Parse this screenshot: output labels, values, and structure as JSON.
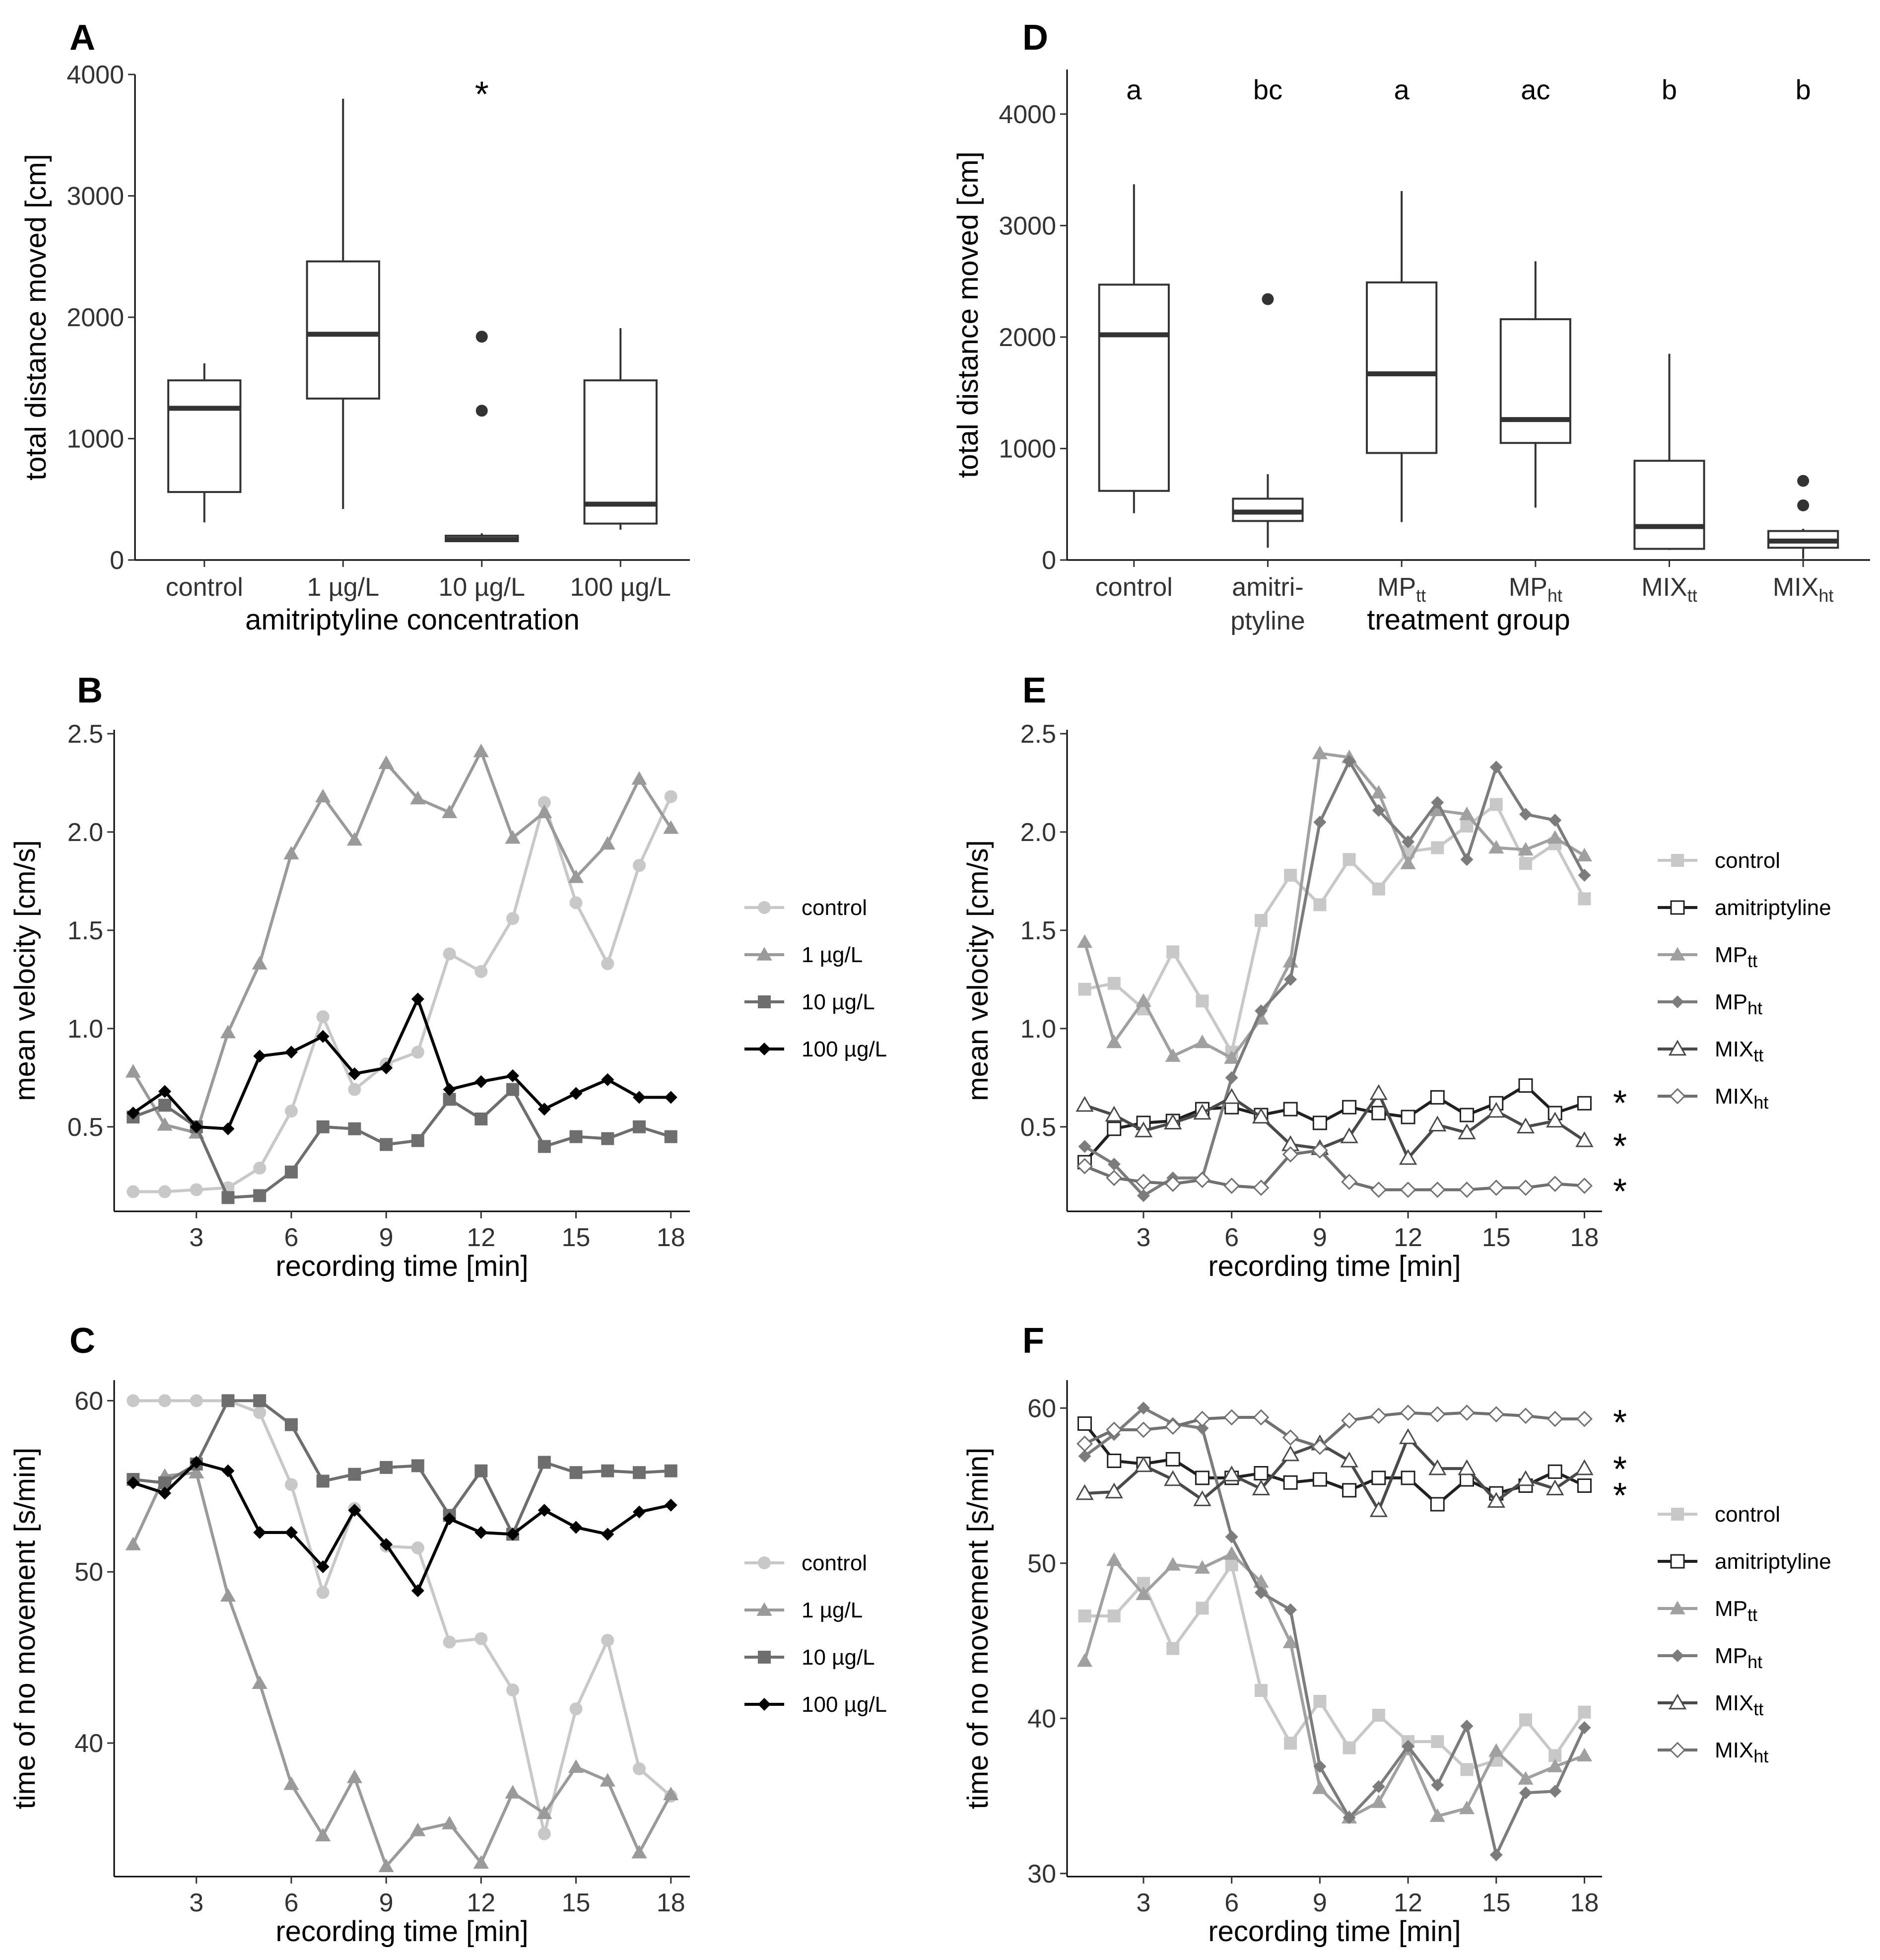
{
  "chart_data": [
    {
      "panel": "A",
      "type": "box",
      "ylabel": "total distance moved [cm]",
      "xlabel": "amitriptyline concentration",
      "ylim": [
        0,
        4000
      ],
      "yticks": [
        "0",
        "1000",
        "2000",
        "3000",
        "4000"
      ],
      "categories": [
        "control",
        "1 µg/L",
        "10 µg/L",
        "100 µg/L"
      ],
      "boxes": [
        {
          "min": 310,
          "q1": 560,
          "median": 1250,
          "q3": 1480,
          "max": 1620,
          "outliers": []
        },
        {
          "min": 420,
          "q1": 1330,
          "median": 1860,
          "q3": 2460,
          "max": 3800,
          "outliers": []
        },
        {
          "min": 150,
          "q1": 155,
          "median": 170,
          "q3": 200,
          "max": 220,
          "outliers": [
            1230,
            1840
          ]
        },
        {
          "min": 250,
          "q1": 300,
          "median": 460,
          "q3": 1480,
          "max": 1910,
          "outliers": []
        }
      ],
      "annotations": [
        {
          "category": "10 µg/L",
          "text": "*",
          "y": 3900
        }
      ]
    },
    {
      "panel": "D",
      "type": "box",
      "ylabel": "total distance moved [cm]",
      "xlabel": "treatment group",
      "ylim": [
        0,
        4400
      ],
      "yticks": [
        "0",
        "1000",
        "2000",
        "3000",
        "4000"
      ],
      "categories": [
        {
          "main": "control",
          "sub": ""
        },
        {
          "main": "amitri-",
          "sub": "",
          "line2": "ptyline"
        },
        {
          "main": "MP",
          "sub": "tt"
        },
        {
          "main": "MP",
          "sub": "ht"
        },
        {
          "main": "MIX",
          "sub": "tt"
        },
        {
          "main": "MIX",
          "sub": "ht"
        }
      ],
      "letters": [
        "a",
        "bc",
        "a",
        "ac",
        "b",
        "b"
      ],
      "boxes": [
        {
          "min": 420,
          "q1": 620,
          "median": 2020,
          "q3": 2470,
          "max": 3370,
          "outliers": []
        },
        {
          "min": 110,
          "q1": 350,
          "median": 430,
          "q3": 550,
          "max": 770,
          "outliers": [
            2340
          ]
        },
        {
          "min": 340,
          "q1": 960,
          "median": 1670,
          "q3": 2490,
          "max": 3310,
          "outliers": []
        },
        {
          "min": 470,
          "q1": 1050,
          "median": 1260,
          "q3": 2160,
          "max": 2680,
          "outliers": []
        },
        {
          "min": 90,
          "q1": 100,
          "median": 300,
          "q3": 890,
          "max": 1850,
          "outliers": []
        },
        {
          "min": 10,
          "q1": 110,
          "median": 170,
          "q3": 260,
          "max": 280,
          "outliers": [
            490,
            710
          ]
        }
      ]
    },
    {
      "panel": "B",
      "type": "line",
      "ylabel": "mean velocity [cm/s]",
      "xlabel": "recording time [min]",
      "xlim": [
        0.4,
        18.6
      ],
      "ylim": [
        0.07,
        2.52
      ],
      "xticks": [
        3,
        6,
        9,
        12,
        15,
        18
      ],
      "yticks": [
        0.5,
        1.0,
        1.5,
        2.0,
        2.5
      ],
      "ytick_labels": [
        "0.5",
        "1.0",
        "1.5",
        "2.0",
        "2.5"
      ],
      "x": [
        1,
        2,
        3,
        4,
        5,
        6,
        7,
        8,
        9,
        10,
        11,
        12,
        13,
        14,
        15,
        16,
        17,
        18
      ],
      "series": [
        {
          "name": "control",
          "color": "#c8c8c8",
          "marker": "circle",
          "values": [
            0.17,
            0.17,
            0.18,
            0.19,
            0.29,
            0.58,
            1.06,
            0.69,
            0.82,
            0.88,
            1.38,
            1.29,
            1.56,
            2.15,
            1.64,
            1.33,
            1.83,
            2.18
          ]
        },
        {
          "name": "1 µg/L",
          "color": "#9a9a9a",
          "marker": "triangle",
          "values": [
            0.78,
            0.51,
            0.47,
            0.98,
            1.33,
            1.89,
            2.18,
            1.96,
            2.35,
            2.17,
            2.1,
            2.41,
            1.97,
            2.1,
            1.77,
            1.94,
            2.27,
            2.02
          ]
        },
        {
          "name": "10 µg/L",
          "color": "#6e6e6e",
          "marker": "square",
          "values": [
            0.55,
            0.61,
            0.5,
            0.14,
            0.15,
            0.27,
            0.5,
            0.49,
            0.41,
            0.43,
            0.64,
            0.54,
            0.69,
            0.4,
            0.45,
            0.44,
            0.5,
            0.45
          ]
        },
        {
          "name": "100 µg/L",
          "color": "#000000",
          "marker": "diamond",
          "values": [
            0.57,
            0.68,
            0.5,
            0.49,
            0.86,
            0.88,
            0.96,
            0.77,
            0.8,
            1.15,
            0.69,
            0.73,
            0.76,
            0.59,
            0.67,
            0.74,
            0.65,
            0.65
          ]
        }
      ],
      "stars": []
    },
    {
      "panel": "E",
      "type": "line",
      "ylabel": "mean velocity [cm/s]",
      "xlabel": "recording time [min]",
      "xlim": [
        0.4,
        18.6
      ],
      "ylim": [
        0.07,
        2.52
      ],
      "xticks": [
        3,
        6,
        9,
        12,
        15,
        18
      ],
      "yticks": [
        0.5,
        1.0,
        1.5,
        2.0,
        2.5
      ],
      "ytick_labels": [
        "0.5",
        "1.0",
        "1.5",
        "2.0",
        "2.5"
      ],
      "x": [
        1,
        2,
        3,
        4,
        5,
        6,
        7,
        8,
        9,
        10,
        11,
        12,
        13,
        14,
        15,
        16,
        17,
        18
      ],
      "series": [
        {
          "name": "control",
          "sub": "",
          "color": "#c8c8c8",
          "marker": "square",
          "values": [
            1.2,
            1.23,
            1.1,
            1.39,
            1.14,
            0.88,
            1.55,
            1.78,
            1.63,
            1.86,
            1.71,
            1.9,
            1.92,
            2.03,
            2.14,
            1.84,
            1.94,
            1.66
          ]
        },
        {
          "name": "amitriptyline",
          "sub": "",
          "color": "#202020",
          "marker": "open-square",
          "values": [
            0.32,
            0.49,
            0.52,
            0.53,
            0.59,
            0.6,
            0.56,
            0.59,
            0.52,
            0.6,
            0.57,
            0.55,
            0.65,
            0.56,
            0.62,
            0.71,
            0.57,
            0.62
          ]
        },
        {
          "name": "MP",
          "sub": "tt",
          "color": "#a0a0a0",
          "marker": "triangle",
          "values": [
            1.44,
            0.93,
            1.14,
            0.86,
            0.93,
            0.85,
            1.05,
            1.34,
            2.4,
            2.38,
            2.2,
            1.84,
            2.11,
            2.09,
            1.92,
            1.91,
            1.97,
            1.88
          ]
        },
        {
          "name": "MP",
          "sub": "ht",
          "color": "#7c7c7c",
          "marker": "diamond",
          "values": [
            0.4,
            0.31,
            0.15,
            0.24,
            0.24,
            0.75,
            1.09,
            1.25,
            2.05,
            2.36,
            2.11,
            1.95,
            2.15,
            1.86,
            2.33,
            2.09,
            2.06,
            1.78
          ]
        },
        {
          "name": "MIX",
          "sub": "tt",
          "color": "#4a4a4a",
          "marker": "open-triangle",
          "values": [
            0.61,
            0.56,
            0.48,
            0.52,
            0.57,
            0.65,
            0.55,
            0.41,
            0.39,
            0.45,
            0.67,
            0.34,
            0.51,
            0.47,
            0.58,
            0.5,
            0.53,
            0.43
          ]
        },
        {
          "name": "MIX",
          "sub": "ht",
          "color": "#707070",
          "marker": "open-diamond",
          "values": [
            0.3,
            0.24,
            0.22,
            0.21,
            0.23,
            0.2,
            0.19,
            0.36,
            0.38,
            0.22,
            0.18,
            0.18,
            0.18,
            0.18,
            0.19,
            0.19,
            0.21,
            0.2
          ]
        }
      ],
      "stars": [
        {
          "y": 0.64,
          "text": "*"
        },
        {
          "y": 0.42,
          "text": "*"
        },
        {
          "y": 0.19,
          "text": "*"
        }
      ]
    },
    {
      "panel": "C",
      "type": "line",
      "ylabel": "time of no movement [s/min]",
      "xlabel": "recording time [min]",
      "xlim": [
        0.4,
        18.6
      ],
      "ylim": [
        32.2,
        61.2
      ],
      "xticks": [
        3,
        6,
        9,
        12,
        15,
        18
      ],
      "yticks": [
        40,
        50,
        60
      ],
      "ytick_labels": [
        "40",
        "50",
        "60"
      ],
      "x": [
        1,
        2,
        3,
        4,
        5,
        6,
        7,
        8,
        9,
        10,
        11,
        12,
        13,
        14,
        15,
        16,
        17,
        18
      ],
      "series": [
        {
          "name": "control",
          "color": "#c8c8c8",
          "marker": "circle",
          "values": [
            60,
            60,
            60,
            60,
            59.3,
            55.1,
            48.8,
            53.7,
            51.5,
            51.4,
            45.9,
            46.1,
            43.1,
            34.7,
            42,
            46,
            38.5,
            36.9
          ]
        },
        {
          "name": "1 µg/L",
          "color": "#9a9a9a",
          "marker": "triangle",
          "values": [
            51.6,
            55.6,
            55.8,
            48.6,
            43.5,
            37.6,
            34.6,
            38,
            32.8,
            34.9,
            35.3,
            33,
            37.1,
            35.9,
            38.6,
            37.8,
            33.6,
            37
          ]
        },
        {
          "name": "10 µg/L",
          "color": "#6e6e6e",
          "marker": "square",
          "values": [
            55.4,
            55.2,
            56.3,
            60,
            60,
            58.6,
            55.3,
            55.7,
            56.1,
            56.2,
            53.3,
            55.9,
            52.2,
            56.4,
            55.8,
            55.9,
            55.8,
            55.9
          ]
        },
        {
          "name": "100 µg/L",
          "color": "#000000",
          "marker": "diamond",
          "values": [
            55.2,
            54.6,
            56.4,
            55.9,
            52.3,
            52.3,
            50.3,
            53.6,
            51.6,
            48.9,
            53.1,
            52.3,
            52.2,
            53.6,
            52.6,
            52.2,
            53.5,
            53.9
          ]
        }
      ],
      "stars": []
    },
    {
      "panel": "F",
      "type": "line",
      "ylabel": "time of no movement [s/min]",
      "xlabel": "recording time [min]",
      "xlim": [
        0.4,
        18.6
      ],
      "ylim": [
        29.8,
        61.8
      ],
      "xticks": [
        3,
        6,
        9,
        12,
        15,
        18
      ],
      "yticks": [
        30,
        40,
        50,
        60
      ],
      "ytick_labels": [
        "30",
        "40",
        "50",
        "60"
      ],
      "x": [
        1,
        2,
        3,
        4,
        5,
        6,
        7,
        8,
        9,
        10,
        11,
        12,
        13,
        14,
        15,
        16,
        17,
        18
      ],
      "series": [
        {
          "name": "control",
          "sub": "",
          "color": "#c8c8c8",
          "marker": "square",
          "values": [
            46.6,
            46.6,
            48.7,
            44.5,
            47.1,
            49.9,
            41.8,
            38.4,
            41.1,
            38.1,
            40.2,
            38.5,
            38.5,
            36.7,
            37.3,
            39.9,
            37.6,
            40.4
          ]
        },
        {
          "name": "amitriptyline",
          "sub": "",
          "color": "#202020",
          "marker": "open-square",
          "values": [
            59,
            56.6,
            56.4,
            56.7,
            55.5,
            55.5,
            55.8,
            55.2,
            55.4,
            54.7,
            55.5,
            55.5,
            53.8,
            55.4,
            54.5,
            55,
            55.9,
            55
          ]
        },
        {
          "name": "MP",
          "sub": "tt",
          "color": "#a0a0a0",
          "marker": "triangle",
          "values": [
            43.7,
            50.2,
            48,
            49.9,
            49.7,
            50.6,
            48.8,
            44.9,
            35.5,
            33.6,
            34.6,
            38,
            33.7,
            34.2,
            37.9,
            36.1,
            36.9,
            37.6
          ]
        },
        {
          "name": "MP",
          "sub": "ht",
          "color": "#7c7c7c",
          "marker": "diamond",
          "values": [
            56.9,
            58.3,
            60,
            59,
            58.7,
            51.7,
            48.1,
            47,
            36.9,
            33.6,
            35.6,
            38.2,
            35.7,
            39.5,
            31.2,
            35.2,
            35.3,
            39.4
          ]
        },
        {
          "name": "MIX",
          "sub": "tt",
          "color": "#4a4a4a",
          "marker": "open-triangle",
          "values": [
            54.5,
            54.6,
            56.3,
            55.4,
            54.1,
            55.7,
            54.8,
            57,
            57.7,
            56.6,
            53.4,
            58.1,
            56.1,
            56.1,
            54,
            55.4,
            54.8,
            56.1
          ]
        },
        {
          "name": "MIX",
          "sub": "ht",
          "color": "#707070",
          "marker": "open-diamond",
          "values": [
            57.7,
            58.6,
            58.6,
            58.8,
            59.3,
            59.4,
            59.4,
            58.1,
            57.5,
            59.2,
            59.5,
            59.7,
            59.6,
            59.7,
            59.6,
            59.5,
            59.3,
            59.3
          ]
        }
      ],
      "stars": [
        {
          "y": 59.3,
          "text": "*"
        },
        {
          "y": 56.3,
          "text": "*"
        },
        {
          "y": 54.6,
          "text": "*"
        }
      ]
    }
  ]
}
